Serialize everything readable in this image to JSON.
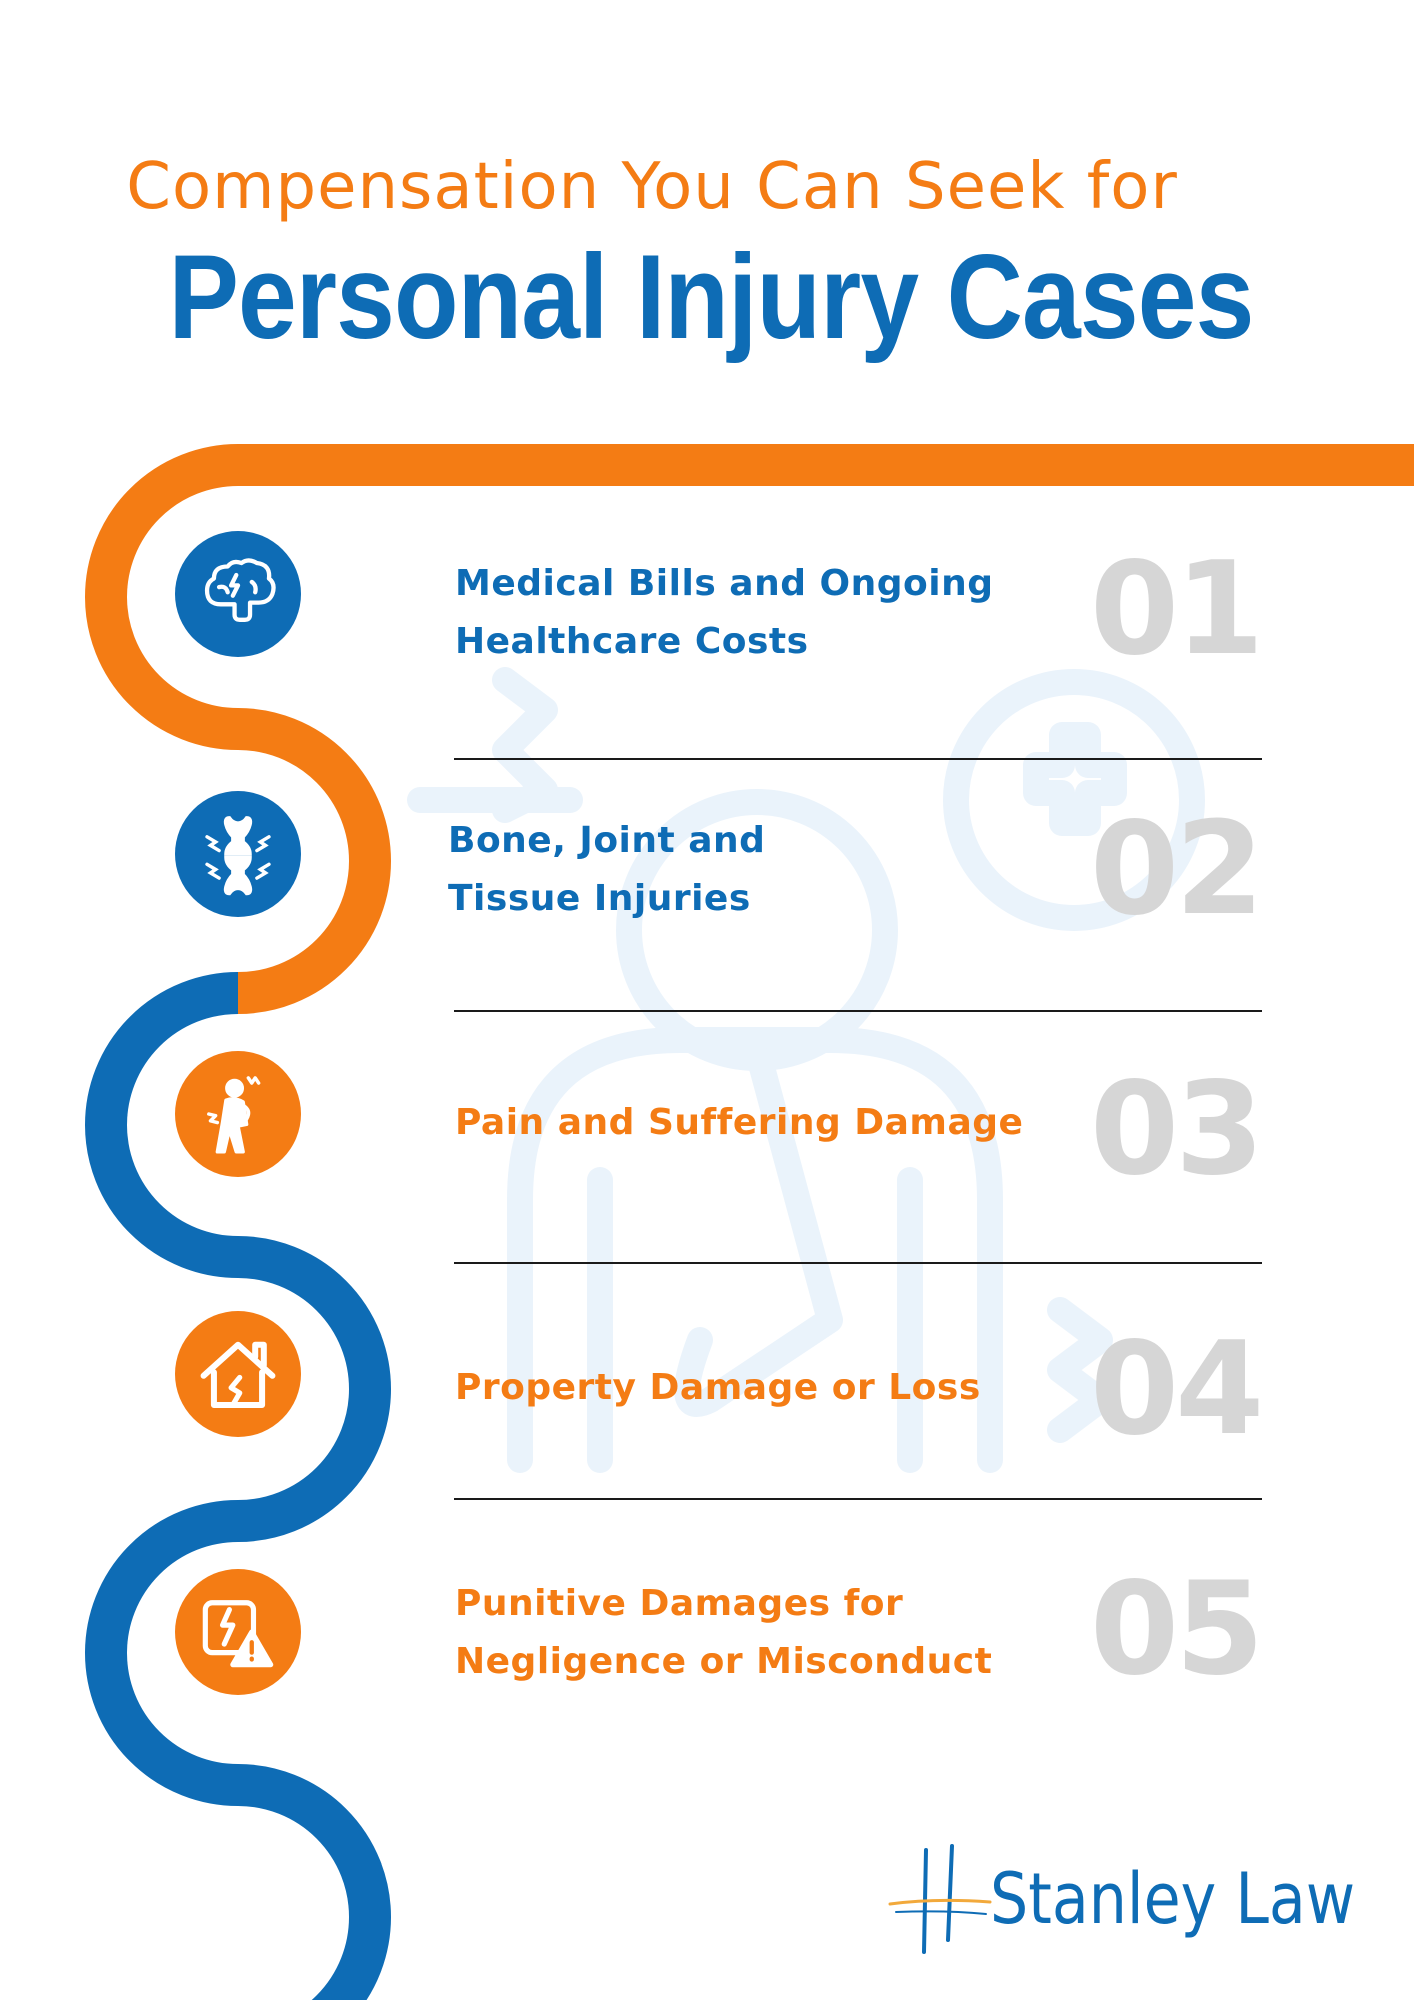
{
  "header": {
    "subtitle": "Compensation You Can Seek for",
    "title": "Personal Injury Cases"
  },
  "items": [
    {
      "label": "Medical Bills and Ongoing\nHealthcare Costs",
      "number": "01",
      "icon": "brain-icon",
      "color": "#0E6CB5"
    },
    {
      "label": "Bone, Joint and\nTissue Injuries",
      "number": "02",
      "icon": "bone-joint-icon",
      "color": "#0E6CB5"
    },
    {
      "label": "Pain and Suffering Damage",
      "number": "03",
      "icon": "pain-person-icon",
      "color": "#F47C14"
    },
    {
      "label": "Property Damage or Loss",
      "number": "04",
      "icon": "broken-house-icon",
      "color": "#F47C14"
    },
    {
      "label": "Punitive Damages for\nNegligence or Misconduct",
      "number": "05",
      "icon": "warning-document-icon",
      "color": "#F47C14"
    }
  ],
  "logo": {
    "name": "Stanley Law"
  },
  "colors": {
    "orange": "#F47C14",
    "blue": "#0E6CB5",
    "number_gray": "#D6D6D6",
    "watermark": "#EAF3FB"
  }
}
